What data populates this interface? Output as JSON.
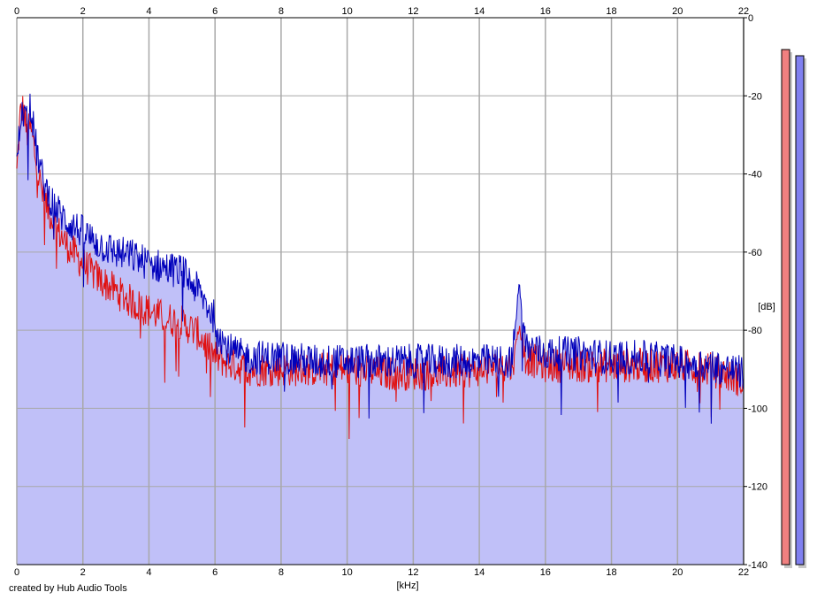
{
  "credit": "created by Hub Audio Tools",
  "chart_data": {
    "type": "line",
    "title": "",
    "xlabel": "[kHz]",
    "ylabel": "[dB]",
    "xlim": [
      0,
      22
    ],
    "ylim": [
      -140,
      0
    ],
    "x_ticks": [
      0,
      2,
      4,
      6,
      8,
      10,
      12,
      14,
      16,
      18,
      20,
      22
    ],
    "y_ticks": [
      0,
      -20,
      -40,
      -60,
      -80,
      -100,
      -120,
      -140
    ],
    "grid": true,
    "x_ticks_on_top": true,
    "y_axis_side": "right",
    "colors": {
      "fill": "#c0c0f8",
      "left_channel": "#e01010",
      "right_channel": "#0000bb",
      "grid": "#a8a8a8",
      "meter_left": "#f08080",
      "meter_right": "#8080f0"
    },
    "series": [
      {
        "color": "#e01010",
        "x": [
          0,
          0.1,
          0.2,
          0.3,
          0.4,
          0.5,
          0.6,
          0.8,
          1.0,
          1.2,
          1.5,
          2.0,
          2.5,
          3.0,
          3.5,
          4.0,
          4.5,
          5.0,
          5.5,
          6.0,
          6.3,
          6.6,
          7.0,
          8.0,
          9.0,
          10.0,
          11.0,
          12.0,
          13.0,
          14.0,
          15.0,
          15.2,
          15.4,
          16.0,
          17.0,
          18.0,
          19.0,
          20.0,
          21.0,
          22.0
        ],
        "values": [
          -40,
          -25,
          -23,
          -30,
          -28,
          -32,
          -38,
          -46,
          -50,
          -54,
          -58,
          -63,
          -67,
          -70,
          -73,
          -75,
          -77,
          -78,
          -81,
          -87,
          -88,
          -89,
          -90,
          -90,
          -90,
          -90,
          -91,
          -91,
          -91,
          -90,
          -89,
          -79,
          -87,
          -89,
          -89,
          -89,
          -89,
          -89,
          -90,
          -93
        ]
      },
      {
        "color": "#0000bb",
        "x": [
          0,
          0.1,
          0.2,
          0.3,
          0.4,
          0.5,
          0.6,
          0.8,
          1.0,
          1.2,
          1.5,
          2.0,
          2.5,
          3.0,
          3.5,
          4.0,
          4.5,
          5.0,
          5.5,
          6.0,
          6.3,
          6.6,
          7.0,
          8.0,
          9.0,
          10.0,
          11.0,
          12.0,
          13.0,
          14.0,
          15.0,
          15.2,
          15.4,
          16.0,
          17.0,
          18.0,
          19.0,
          20.0,
          21.0,
          22.0
        ],
        "values": [
          -38,
          -27,
          -24,
          -27,
          -21,
          -28,
          -34,
          -42,
          -46,
          -49,
          -52,
          -55,
          -58,
          -60,
          -61,
          -63,
          -64,
          -65,
          -70,
          -77,
          -84,
          -86,
          -87,
          -87,
          -88,
          -88,
          -88,
          -88,
          -88,
          -88,
          -88,
          -68,
          -84,
          -86,
          -86,
          -87,
          -87,
          -88,
          -89,
          -91
        ]
      }
    ]
  }
}
